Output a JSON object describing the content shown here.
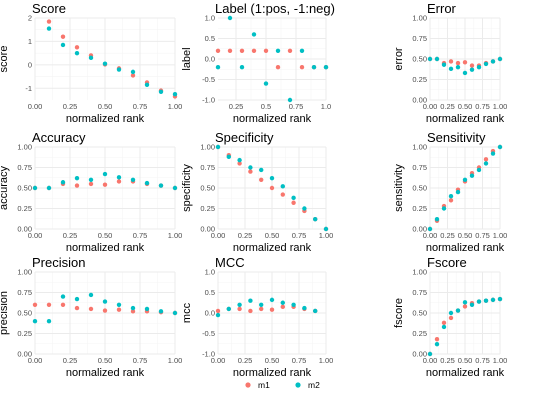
{
  "colors": {
    "m1": "#F8766D",
    "m2": "#00BFC4",
    "panel_bg": "#FFFFFF",
    "grid_major": "#EBEBEB",
    "grid_minor": "#F5F5F5",
    "axis_text": "#4D4D4D",
    "text": "#000000"
  },
  "legend": {
    "position": "bottom",
    "items": [
      {
        "label": "m1",
        "color": "#F8766D"
      },
      {
        "label": "m2",
        "color": "#00BFC4"
      }
    ]
  },
  "chart_data": [
    {
      "type": "scatter",
      "title": "Score",
      "xlabel": "normalized rank",
      "ylabel": "score",
      "xlim": [
        0,
        1
      ],
      "ylim": [
        -1.5,
        2
      ],
      "xticks": [
        0.0,
        0.25,
        0.5,
        0.75,
        1.0
      ],
      "xtick_labels": [
        "0.00",
        "0.25",
        "0.50",
        "0.75",
        "1.00"
      ],
      "yticks": [
        -1,
        0,
        1,
        2
      ],
      "ytick_labels": [
        "-1",
        "0",
        "1",
        "2"
      ],
      "series": [
        {
          "name": "m1",
          "x": [
            0.1,
            0.2,
            0.3,
            0.4,
            0.5,
            0.6,
            0.7,
            0.8,
            0.9,
            1.0
          ],
          "y": [
            1.85,
            1.2,
            0.75,
            0.4,
            0.02,
            -0.15,
            -0.45,
            -0.75,
            -1.1,
            -1.35
          ]
        },
        {
          "name": "m2",
          "x": [
            0.1,
            0.2,
            0.3,
            0.4,
            0.5,
            0.6,
            0.7,
            0.8,
            0.9,
            1.0
          ],
          "y": [
            1.55,
            0.85,
            0.5,
            0.3,
            0.05,
            -0.2,
            -0.3,
            -0.85,
            -1.15,
            -1.25
          ]
        }
      ]
    },
    {
      "type": "scatter",
      "title": "Label (1:pos, -1:neg)",
      "xlabel": "normalized rank",
      "ylabel": "label",
      "xlim": [
        0.1,
        1
      ],
      "ylim": [
        -1,
        1
      ],
      "xticks": [
        0.25,
        0.5,
        0.75,
        1.0
      ],
      "xtick_labels": [
        "0.25",
        "0.5",
        "0.75",
        "1.0"
      ],
      "yticks": [
        -1,
        -0.5,
        0,
        0.5,
        1
      ],
      "ytick_labels": [
        "-1.0",
        "-0.5",
        "0.0",
        "0.5",
        "1.0"
      ],
      "series": [
        {
          "name": "m1",
          "x": [
            0.1,
            0.2,
            0.3,
            0.4,
            0.5,
            0.6,
            0.7,
            0.8,
            0.9,
            1.0
          ],
          "y": [
            0.2,
            0.2,
            0.2,
            0.2,
            0.2,
            -0.2,
            0.2,
            -0.2,
            -0.2,
            -0.2
          ]
        },
        {
          "name": "m2",
          "x": [
            0.1,
            0.2,
            0.3,
            0.4,
            0.5,
            0.6,
            0.7,
            0.8,
            0.9,
            1.0
          ],
          "y": [
            -0.2,
            1.0,
            -0.2,
            0.6,
            -0.6,
            0.2,
            -1.0,
            0.2,
            -0.2,
            -0.2
          ]
        }
      ]
    },
    {
      "type": "scatter",
      "title": "Error",
      "xlabel": "normalized rank",
      "ylabel": "error",
      "xlim": [
        0,
        1
      ],
      "ylim": [
        0,
        1
      ],
      "xticks": [
        0.0,
        0.25,
        0.5,
        0.75,
        1.0
      ],
      "xtick_labels": [
        "0.00",
        "0.25",
        "0.50",
        "0.75",
        "1.00"
      ],
      "yticks": [
        0,
        0.25,
        0.5,
        0.75,
        1
      ],
      "ytick_labels": [
        "0.00",
        "0.25",
        "0.50",
        "0.75",
        "1.00"
      ],
      "series": [
        {
          "name": "m1",
          "x": [
            0.0,
            0.1,
            0.2,
            0.3,
            0.4,
            0.5,
            0.6,
            0.7,
            0.8,
            0.9,
            1.0
          ],
          "y": [
            0.5,
            0.5,
            0.45,
            0.47,
            0.45,
            0.46,
            0.42,
            0.42,
            0.45,
            0.47,
            0.5
          ]
        },
        {
          "name": "m2",
          "x": [
            0.0,
            0.1,
            0.2,
            0.3,
            0.4,
            0.5,
            0.6,
            0.7,
            0.8,
            0.9,
            1.0
          ],
          "y": [
            0.5,
            0.5,
            0.43,
            0.38,
            0.4,
            0.33,
            0.37,
            0.4,
            0.44,
            0.47,
            0.5
          ]
        }
      ]
    },
    {
      "type": "scatter",
      "title": "Accuracy",
      "xlabel": "normalized rank",
      "ylabel": "accuracy",
      "xlim": [
        0,
        1
      ],
      "ylim": [
        0,
        1
      ],
      "xticks": [
        0.0,
        0.25,
        0.5,
        0.75,
        1.0
      ],
      "xtick_labels": [
        "0.00",
        "0.25",
        "0.50",
        "0.75",
        "1.00"
      ],
      "yticks": [
        0,
        0.25,
        0.5,
        0.75,
        1
      ],
      "ytick_labels": [
        "0.00",
        "0.25",
        "0.50",
        "0.75",
        "1.00"
      ],
      "series": [
        {
          "name": "m1",
          "x": [
            0.0,
            0.1,
            0.2,
            0.3,
            0.4,
            0.5,
            0.6,
            0.7,
            0.8,
            0.9,
            1.0
          ],
          "y": [
            0.5,
            0.5,
            0.55,
            0.53,
            0.55,
            0.54,
            0.58,
            0.58,
            0.55,
            0.53,
            0.5
          ]
        },
        {
          "name": "m2",
          "x": [
            0.0,
            0.1,
            0.2,
            0.3,
            0.4,
            0.5,
            0.6,
            0.7,
            0.8,
            0.9,
            1.0
          ],
          "y": [
            0.5,
            0.5,
            0.57,
            0.62,
            0.6,
            0.67,
            0.63,
            0.6,
            0.56,
            0.53,
            0.5
          ]
        }
      ]
    },
    {
      "type": "scatter",
      "title": "Specificity",
      "xlabel": "normalized rank",
      "ylabel": "specificity",
      "xlim": [
        0,
        1
      ],
      "ylim": [
        0,
        1
      ],
      "xticks": [
        0.0,
        0.25,
        0.5,
        0.75,
        1.0
      ],
      "xtick_labels": [
        "0.00",
        "0.25",
        "0.50",
        "0.75",
        "1.00"
      ],
      "yticks": [
        0,
        0.25,
        0.5,
        0.75,
        1
      ],
      "ytick_labels": [
        "0.00",
        "0.25",
        "0.50",
        "0.75",
        "1.00"
      ],
      "series": [
        {
          "name": "m1",
          "x": [
            0.0,
            0.1,
            0.2,
            0.3,
            0.4,
            0.5,
            0.6,
            0.7,
            0.8,
            0.9,
            1.0
          ],
          "y": [
            1.0,
            0.9,
            0.8,
            0.7,
            0.6,
            0.5,
            0.42,
            0.32,
            0.22,
            0.12,
            0.0
          ]
        },
        {
          "name": "m2",
          "x": [
            0.0,
            0.1,
            0.2,
            0.3,
            0.4,
            0.5,
            0.6,
            0.7,
            0.8,
            0.9,
            1.0
          ],
          "y": [
            1.0,
            0.88,
            0.84,
            0.75,
            0.72,
            0.62,
            0.52,
            0.38,
            0.25,
            0.12,
            0.0
          ]
        }
      ]
    },
    {
      "type": "scatter",
      "title": "Sensitivity",
      "xlabel": "normalized rank",
      "ylabel": "sensitivity",
      "xlim": [
        0,
        1
      ],
      "ylim": [
        0,
        1
      ],
      "xticks": [
        0.0,
        0.25,
        0.5,
        0.75,
        1.0
      ],
      "xtick_labels": [
        "0.00",
        "0.25",
        "0.50",
        "0.75",
        "1.00"
      ],
      "yticks": [
        0,
        0.25,
        0.5,
        0.75,
        1
      ],
      "ytick_labels": [
        "0.00",
        "0.25",
        "0.50",
        "0.75",
        "1.00"
      ],
      "series": [
        {
          "name": "m1",
          "x": [
            0.0,
            0.1,
            0.2,
            0.3,
            0.4,
            0.5,
            0.6,
            0.7,
            0.8,
            0.9,
            1.0
          ],
          "y": [
            0.0,
            0.1,
            0.28,
            0.35,
            0.48,
            0.58,
            0.68,
            0.75,
            0.85,
            0.95,
            1.0
          ]
        },
        {
          "name": "m2",
          "x": [
            0.0,
            0.1,
            0.2,
            0.3,
            0.4,
            0.5,
            0.6,
            0.7,
            0.8,
            0.9,
            1.0
          ],
          "y": [
            0.0,
            0.12,
            0.25,
            0.4,
            0.45,
            0.6,
            0.65,
            0.72,
            0.8,
            0.92,
            1.0
          ]
        }
      ]
    },
    {
      "type": "scatter",
      "title": "Precision",
      "xlabel": "normalized rank",
      "ylabel": "precision",
      "xlim": [
        0,
        1
      ],
      "ylim": [
        0,
        1
      ],
      "xticks": [
        0.0,
        0.25,
        0.5,
        0.75,
        1.0
      ],
      "xtick_labels": [
        "0.00",
        "0.25",
        "0.50",
        "0.75",
        "1.00"
      ],
      "yticks": [
        0,
        0.25,
        0.5,
        0.75,
        1
      ],
      "ytick_labels": [
        "0.00",
        "0.25",
        "0.50",
        "0.75",
        "1.00"
      ],
      "series": [
        {
          "name": "m1",
          "x": [
            0.0,
            0.1,
            0.2,
            0.3,
            0.4,
            0.5,
            0.6,
            0.7,
            0.8,
            0.9,
            1.0
          ],
          "y": [
            0.6,
            0.6,
            0.6,
            0.56,
            0.55,
            0.53,
            0.54,
            0.52,
            0.52,
            0.51,
            0.5
          ]
        },
        {
          "name": "m2",
          "x": [
            0.0,
            0.1,
            0.2,
            0.3,
            0.4,
            0.5,
            0.6,
            0.7,
            0.8,
            0.9,
            1.0
          ],
          "y": [
            0.4,
            0.4,
            0.7,
            0.67,
            0.72,
            0.64,
            0.6,
            0.56,
            0.55,
            0.52,
            0.5
          ]
        }
      ]
    },
    {
      "type": "scatter",
      "title": "MCC",
      "xlabel": "normalized rank",
      "ylabel": "mcc",
      "xlim": [
        0,
        1
      ],
      "ylim": [
        -1,
        1
      ],
      "xticks": [
        0.0,
        0.25,
        0.5,
        0.75,
        1.0
      ],
      "xtick_labels": [
        "0.00",
        "0.25",
        "0.50",
        "0.75",
        "1.00"
      ],
      "yticks": [
        -1,
        -0.5,
        0,
        0.5,
        1
      ],
      "ytick_labels": [
        "-1.0",
        "-0.5",
        "0.0",
        "0.5",
        "1.0"
      ],
      "series": [
        {
          "name": "m1",
          "x": [
            0.0,
            0.1,
            0.2,
            0.3,
            0.4,
            0.5,
            0.6,
            0.7,
            0.8,
            0.9
          ],
          "y": [
            0.05,
            0.1,
            0.1,
            0.05,
            0.1,
            0.08,
            0.15,
            0.15,
            0.1,
            0.05
          ]
        },
        {
          "name": "m2",
          "x": [
            0.0,
            0.1,
            0.2,
            0.3,
            0.4,
            0.5,
            0.6,
            0.7,
            0.8,
            0.9
          ],
          "y": [
            -0.05,
            0.1,
            0.2,
            0.3,
            0.2,
            0.32,
            0.25,
            0.2,
            0.12,
            0.05
          ]
        }
      ]
    },
    {
      "type": "scatter",
      "title": "Fscore",
      "xlabel": "normalized rank",
      "ylabel": "fscore",
      "xlim": [
        0,
        1
      ],
      "ylim": [
        0,
        1
      ],
      "xticks": [
        0.0,
        0.25,
        0.5,
        0.75,
        1.0
      ],
      "xtick_labels": [
        "0.00",
        "0.25",
        "0.50",
        "0.75",
        "1.00"
      ],
      "yticks": [
        0,
        0.25,
        0.5,
        0.75,
        1
      ],
      "ytick_labels": [
        "0.00",
        "0.25",
        "0.50",
        "0.75",
        "1.00"
      ],
      "series": [
        {
          "name": "m1",
          "x": [
            0.0,
            0.1,
            0.2,
            0.3,
            0.4,
            0.5,
            0.6,
            0.7,
            0.8,
            0.9,
            1.0
          ],
          "y": [
            0.0,
            0.18,
            0.38,
            0.44,
            0.53,
            0.58,
            0.62,
            0.64,
            0.65,
            0.66,
            0.67
          ]
        },
        {
          "name": "m2",
          "x": [
            0.0,
            0.1,
            0.2,
            0.3,
            0.4,
            0.5,
            0.6,
            0.7,
            0.8,
            0.9,
            1.0
          ],
          "y": [
            0.0,
            0.12,
            0.33,
            0.5,
            0.53,
            0.63,
            0.6,
            0.64,
            0.65,
            0.66,
            0.67
          ]
        }
      ]
    }
  ]
}
